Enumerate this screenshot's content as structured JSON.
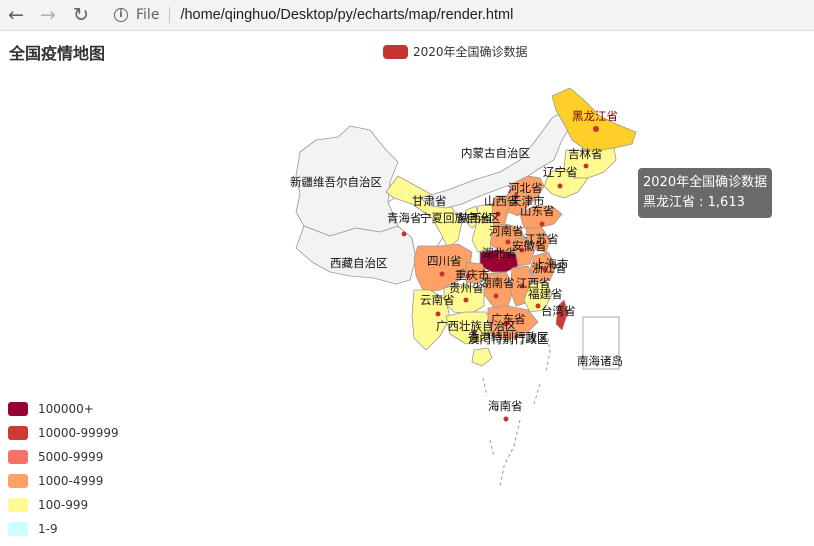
{
  "browser": {
    "scheme": "File",
    "url": "/home/qinghuo/Desktop/py/echarts/map/render.html"
  },
  "map": {
    "title": "全国疫情地图",
    "series_name": "2020年全国确诊数据",
    "tooltip": {
      "series": "2020年全国确诊数据",
      "line": "黑龙江省 : 1,613"
    },
    "visual_map": [
      {
        "label": "100000+",
        "color": "#990033"
      },
      {
        "label": "10000-99999",
        "color": "#d03a32"
      },
      {
        "label": "5000-9999",
        "color": "#f87068"
      },
      {
        "label": "1000-4999",
        "color": "#ffa067"
      },
      {
        "label": "100-999",
        "color": "#fffb92"
      },
      {
        "label": "1-9",
        "color": "#ccffff"
      }
    ],
    "labels": {
      "heilongjiang": "黑龙江省",
      "jilin": "吉林省",
      "liaoning": "辽宁省",
      "neimenggu": "内蒙古自治区",
      "xinjiang": "新疆维吾尔自治区",
      "gansu": "甘肃省",
      "qinghai": "青海省",
      "ningxia": "宁夏回族自治区",
      "shaanxi": "陕西省",
      "shanxi": "山西省",
      "hebei": "河北省",
      "tianjin": "天津市",
      "shandong": "山东省",
      "henan": "河南省",
      "jiangsu": "江苏省",
      "anhui": "安徽省",
      "hubei": "湖北省",
      "shanghai": "上海市",
      "zhejiang": "浙江省",
      "xizang": "西藏自治区",
      "sichuan": "四川省",
      "chongqing": "重庆市",
      "guizhou": "贵州省",
      "hunan": "湖南省",
      "jiangxi": "江西省",
      "fujian": "福建省",
      "taiwan": "台湾省",
      "yunnan": "云南省",
      "guangxi": "广西壮族自治区",
      "guangdong": "广东省",
      "hongkong": "香港特别行政区",
      "macau": "澳门特别行政区",
      "hainan": "海南省",
      "nanhai": "南海诸岛"
    }
  }
}
